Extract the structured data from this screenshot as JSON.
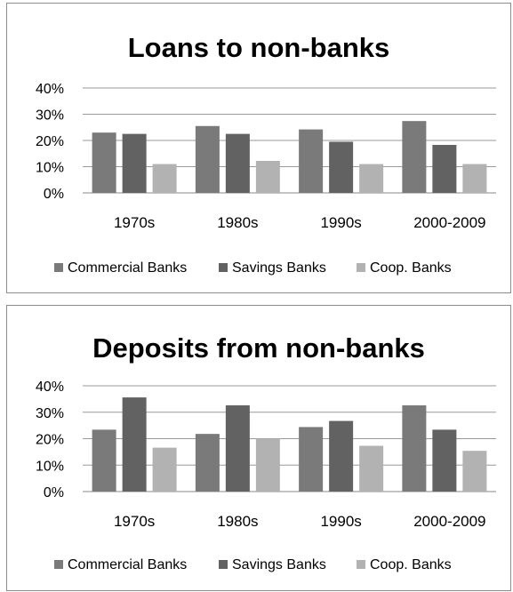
{
  "chart_data": [
    {
      "type": "bar",
      "title": "Loans to non-banks",
      "categories": [
        "1970s",
        "1980s",
        "1990s",
        "2000-2009"
      ],
      "series": [
        {
          "name": "Commercial Banks",
          "values": [
            23,
            25.5,
            24.2,
            27.4
          ]
        },
        {
          "name": "Savings Banks",
          "values": [
            22.5,
            22.5,
            19.5,
            18.3
          ]
        },
        {
          "name": "Coop. Banks",
          "values": [
            11,
            12.2,
            11,
            11
          ]
        }
      ],
      "yticks": [
        "0%",
        "10%",
        "20%",
        "30%",
        "40%"
      ],
      "ylim": [
        0,
        40
      ],
      "grid": true,
      "legend": "bottom",
      "colors": [
        "#7a7a7a",
        "#626262",
        "#b2b2b2"
      ]
    },
    {
      "type": "bar",
      "title": "Deposits from non-banks",
      "categories": [
        "1970s",
        "1980s",
        "1990s",
        "2000-2009"
      ],
      "series": [
        {
          "name": "Commercial Banks",
          "values": [
            23.4,
            21.8,
            24.4,
            32.6
          ]
        },
        {
          "name": "Savings Banks",
          "values": [
            35.6,
            32.6,
            26.7,
            23.4
          ]
        },
        {
          "name": "Coop. Banks",
          "values": [
            16.6,
            20,
            17.3,
            15.4
          ]
        }
      ],
      "yticks": [
        "0%",
        "10%",
        "20%",
        "30%",
        "40%"
      ],
      "ylim": [
        0,
        40
      ],
      "grid": true,
      "legend": "bottom",
      "colors": [
        "#7a7a7a",
        "#626262",
        "#b2b2b2"
      ]
    }
  ]
}
